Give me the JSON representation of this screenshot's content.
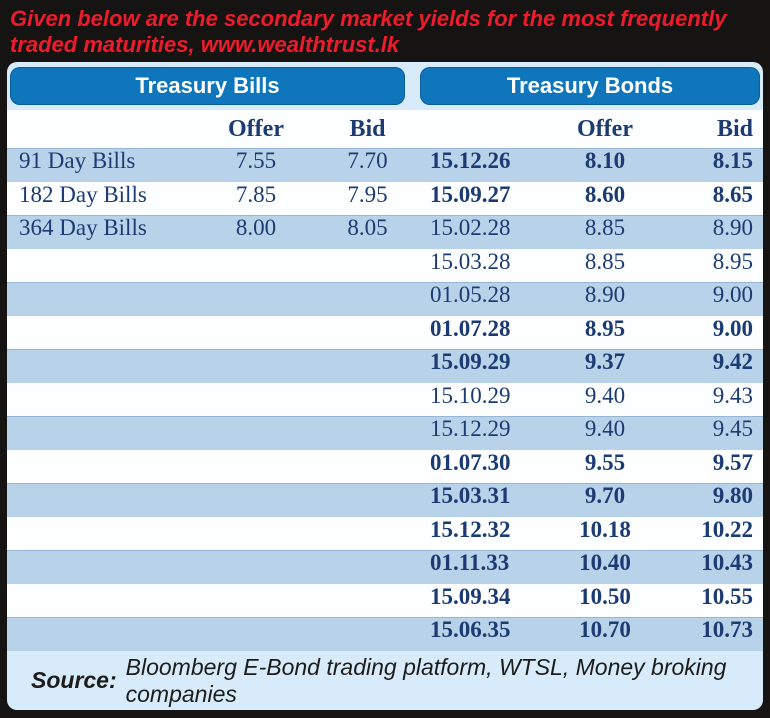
{
  "title": {
    "line1": "Given below are the secondary market yields for the most frequently",
    "line2": "traded maturities, www.wealthtrust.lk"
  },
  "sections": {
    "bills_header": "Treasury Bills",
    "bonds_header": "Treasury Bonds"
  },
  "columns": {
    "offer": "Offer",
    "bid": "Bid"
  },
  "rows": [
    {
      "bill_label": "91 Day Bills",
      "bill_offer": "7.55",
      "bill_bid": "7.70",
      "bond_date": "15.12.26",
      "bond_offer": "8.10",
      "bond_bid": "8.15",
      "bond_bold": true,
      "striped": true
    },
    {
      "bill_label": "182 Day Bills",
      "bill_offer": "7.85",
      "bill_bid": "7.95",
      "bond_date": "15.09.27",
      "bond_offer": "8.60",
      "bond_bid": "8.65",
      "bond_bold": true,
      "striped": false
    },
    {
      "bill_label": "364 Day Bills",
      "bill_offer": "8.00",
      "bill_bid": "8.05",
      "bond_date": "15.02.28",
      "bond_offer": "8.85",
      "bond_bid": "8.90",
      "bond_bold": false,
      "striped": true
    },
    {
      "bill_label": "",
      "bill_offer": "",
      "bill_bid": "",
      "bond_date": "15.03.28",
      "bond_offer": "8.85",
      "bond_bid": "8.95",
      "bond_bold": false,
      "striped": false
    },
    {
      "bill_label": "",
      "bill_offer": "",
      "bill_bid": "",
      "bond_date": "01.05.28",
      "bond_offer": "8.90",
      "bond_bid": "9.00",
      "bond_bold": false,
      "striped": true
    },
    {
      "bill_label": "",
      "bill_offer": "",
      "bill_bid": "",
      "bond_date": "01.07.28",
      "bond_offer": "8.95",
      "bond_bid": "9.00",
      "bond_bold": true,
      "striped": false
    },
    {
      "bill_label": "",
      "bill_offer": "",
      "bill_bid": "",
      "bond_date": "15.09.29",
      "bond_offer": "9.37",
      "bond_bid": "9.42",
      "bond_bold": true,
      "striped": true
    },
    {
      "bill_label": "",
      "bill_offer": "",
      "bill_bid": "",
      "bond_date": "15.10.29",
      "bond_offer": "9.40",
      "bond_bid": "9.43",
      "bond_bold": false,
      "striped": false
    },
    {
      "bill_label": "",
      "bill_offer": "",
      "bill_bid": "",
      "bond_date": "15.12.29",
      "bond_offer": "9.40",
      "bond_bid": "9.45",
      "bond_bold": false,
      "striped": true
    },
    {
      "bill_label": "",
      "bill_offer": "",
      "bill_bid": "",
      "bond_date": "01.07.30",
      "bond_offer": "9.55",
      "bond_bid": "9.57",
      "bond_bold": true,
      "striped": false
    },
    {
      "bill_label": "",
      "bill_offer": "",
      "bill_bid": "",
      "bond_date": "15.03.31",
      "bond_offer": "9.70",
      "bond_bid": "9.80",
      "bond_bold": true,
      "striped": true
    },
    {
      "bill_label": "",
      "bill_offer": "",
      "bill_bid": "",
      "bond_date": "15.12.32",
      "bond_offer": "10.18",
      "bond_bid": "10.22",
      "bond_bold": true,
      "striped": false
    },
    {
      "bill_label": "",
      "bill_offer": "",
      "bill_bid": "",
      "bond_date": "01.11.33",
      "bond_offer": "10.40",
      "bond_bid": "10.43",
      "bond_bold": true,
      "striped": true
    },
    {
      "bill_label": "",
      "bill_offer": "",
      "bill_bid": "",
      "bond_date": "15.09.34",
      "bond_offer": "10.50",
      "bond_bid": "10.55",
      "bond_bold": true,
      "striped": false
    },
    {
      "bill_label": "",
      "bill_offer": "",
      "bill_bid": "",
      "bond_date": "15.06.35",
      "bond_offer": "10.70",
      "bond_bid": "10.73",
      "bond_bold": true,
      "striped": true
    }
  ],
  "source": {
    "label": "Source:",
    "text": "Bloomberg E-Bond trading platform, WTSL, Money broking companies"
  },
  "colors": {
    "page_bg": "#161412",
    "headline_red": "#ec1c2c",
    "panel_bg": "#d7ebfa",
    "bar_blue": "#0f76bc",
    "stripe_blue": "#b8d2ea",
    "text_navy": "#1b3b72"
  }
}
